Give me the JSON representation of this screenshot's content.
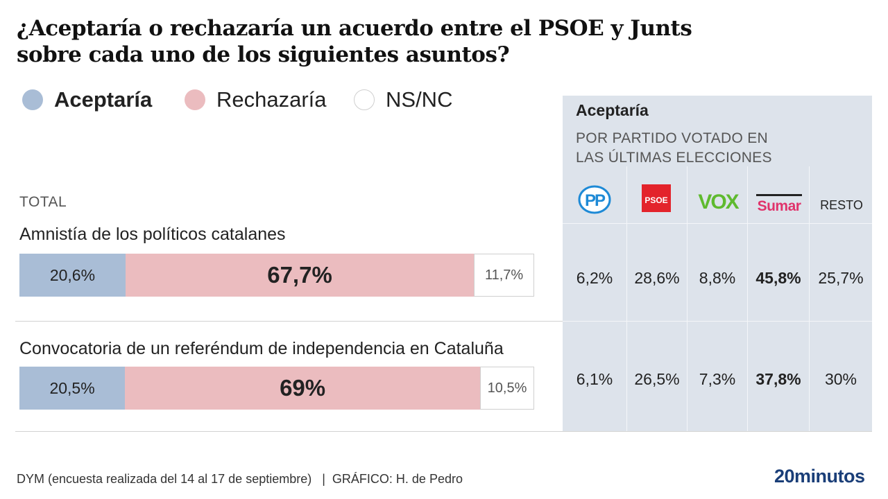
{
  "title_line1": "¿Aceptaría o rechazaría un acuerdo entre el PSOE y Junts",
  "title_line2": "sobre cada uno de los siguientes asuntos?",
  "legend": [
    {
      "label": "Aceptaría",
      "color": "#a9bdd6"
    },
    {
      "label": "Rechazaría",
      "color": "#ebbcbf"
    },
    {
      "label": "NS/NC",
      "color": "#ffffff"
    }
  ],
  "total_label": "TOTAL",
  "panel": {
    "title": "Aceptaría",
    "subtitle_line1": "POR PARTIDO VOTADO EN",
    "subtitle_line2": "LAS ÚLTIMAS ELECCIONES",
    "parties": [
      "PP",
      "PSOE",
      "VOX",
      "Sumar",
      "RESTO"
    ]
  },
  "chart_data": [
    {
      "type": "bar",
      "orientation": "horizontal-stacked",
      "title": "Total",
      "categories": [
        "Amnistía de los políticos catalanes",
        "Convocatoria de un referéndum de independencia en Cataluña"
      ],
      "series": [
        {
          "name": "Aceptaría",
          "values": [
            20.6,
            20.5
          ],
          "labels": [
            "20,6%",
            "20,5%"
          ],
          "color": "#a9bdd6"
        },
        {
          "name": "Rechazaría",
          "values": [
            67.7,
            69
          ],
          "labels": [
            "67,7%",
            "69%"
          ],
          "color": "#ebbcbf"
        },
        {
          "name": "NS/NC",
          "values": [
            11.7,
            10.5
          ],
          "labels": [
            "11,7%",
            "10,5%"
          ],
          "color": "#ffffff"
        }
      ],
      "xlim": [
        0,
        100
      ]
    },
    {
      "type": "table",
      "title": "Aceptaría por partido votado en las últimas elecciones",
      "columns": [
        "PP",
        "PSOE",
        "VOX",
        "Sumar",
        "RESTO"
      ],
      "rows": [
        {
          "category": "Amnistía de los políticos catalanes",
          "values": [
            6.2,
            28.6,
            8.8,
            45.8,
            25.7
          ],
          "labels": [
            "6,2%",
            "28,6%",
            "8,8%",
            "45,8%",
            "25,7%"
          ]
        },
        {
          "category": "Convocatoria de un referéndum de independencia en Cataluña",
          "values": [
            6.1,
            26.5,
            7.3,
            37.8,
            30
          ],
          "labels": [
            "6,1%",
            "26,5%",
            "7,3%",
            "37,8%",
            "30%"
          ]
        }
      ]
    }
  ],
  "source": "DYM (encuesta realizada del 14 al 17 de septiembre)   |  GRÁFICO: H. de Pedro",
  "brand": "20minutos"
}
